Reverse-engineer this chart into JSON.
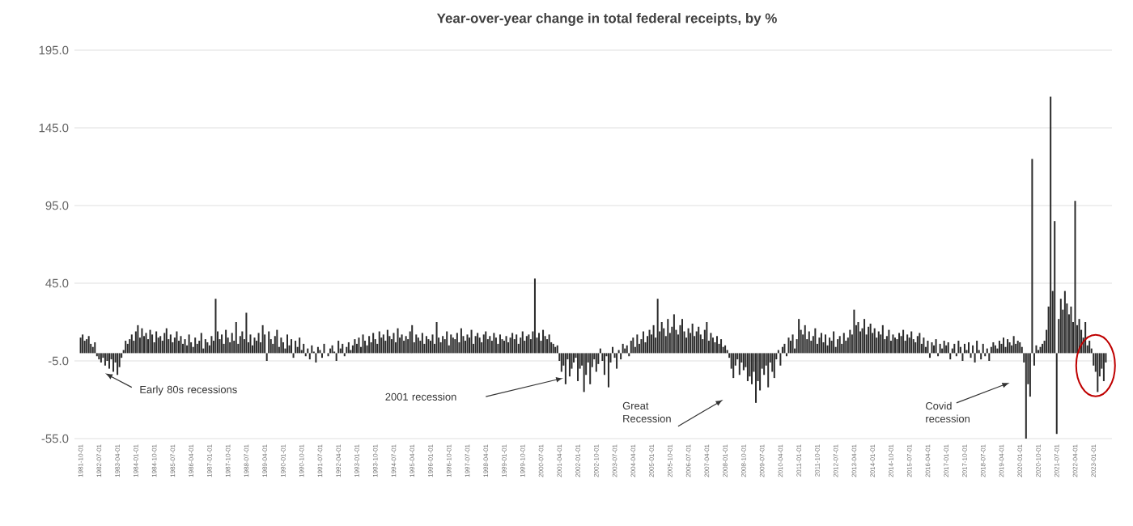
{
  "chart_data": {
    "type": "bar",
    "title": "Year-over-year change in total federal receipts, by %",
    "color": "#2b2b2b",
    "grid": "y",
    "ylim": [
      -55,
      195
    ],
    "yticks": [
      {
        "value": -55,
        "label": "-55.0"
      },
      {
        "value": -5,
        "label": "-5.0"
      },
      {
        "value": 45,
        "label": "45.0"
      },
      {
        "value": 95,
        "label": "95.0"
      },
      {
        "value": 145,
        "label": "145.0"
      },
      {
        "value": 195,
        "label": "195.0"
      }
    ],
    "annotations": [
      "Early 80s recessions",
      "2001 recession",
      "Great Recession",
      "Covid recession"
    ],
    "categories": [
      "1981-10-01",
      null,
      null,
      null,
      null,
      null,
      null,
      null,
      null,
      "1982-07-01",
      null,
      null,
      null,
      null,
      null,
      null,
      null,
      null,
      "1983-04-01",
      null,
      null,
      null,
      null,
      null,
      null,
      null,
      null,
      "1984-01-01",
      null,
      null,
      null,
      null,
      null,
      null,
      null,
      null,
      "1984-10-01",
      null,
      null,
      null,
      null,
      null,
      null,
      null,
      null,
      "1985-07-01",
      null,
      null,
      null,
      null,
      null,
      null,
      null,
      null,
      "1986-04-01",
      null,
      null,
      null,
      null,
      null,
      null,
      null,
      null,
      "1987-01-01",
      null,
      null,
      null,
      null,
      null,
      null,
      null,
      null,
      "1987-10-01",
      null,
      null,
      null,
      null,
      null,
      null,
      null,
      null,
      "1988-07-01",
      null,
      null,
      null,
      null,
      null,
      null,
      null,
      null,
      "1989-04-01",
      null,
      null,
      null,
      null,
      null,
      null,
      null,
      null,
      "1990-01-01",
      null,
      null,
      null,
      null,
      null,
      null,
      null,
      null,
      "1990-10-01",
      null,
      null,
      null,
      null,
      null,
      null,
      null,
      null,
      "1991-07-01",
      null,
      null,
      null,
      null,
      null,
      null,
      null,
      null,
      "1992-04-01",
      null,
      null,
      null,
      null,
      null,
      null,
      null,
      null,
      "1993-01-01",
      null,
      null,
      null,
      null,
      null,
      null,
      null,
      null,
      "1993-10-01",
      null,
      null,
      null,
      null,
      null,
      null,
      null,
      null,
      "1994-07-01",
      null,
      null,
      null,
      null,
      null,
      null,
      null,
      null,
      "1995-04-01",
      null,
      null,
      null,
      null,
      null,
      null,
      null,
      null,
      "1996-01-01",
      null,
      null,
      null,
      null,
      null,
      null,
      null,
      null,
      "1996-10-01",
      null,
      null,
      null,
      null,
      null,
      null,
      null,
      null,
      "1997-07-01",
      null,
      null,
      null,
      null,
      null,
      null,
      null,
      null,
      "1998-04-01",
      null,
      null,
      null,
      null,
      null,
      null,
      null,
      null,
      "1999-01-01",
      null,
      null,
      null,
      null,
      null,
      null,
      null,
      null,
      "1999-10-01",
      null,
      null,
      null,
      null,
      null,
      null,
      null,
      null,
      "2000-07-01",
      null,
      null,
      null,
      null,
      null,
      null,
      null,
      null,
      "2001-04-01",
      null,
      null,
      null,
      null,
      null,
      null,
      null,
      null,
      "2002-01-01",
      null,
      null,
      null,
      null,
      null,
      null,
      null,
      null,
      "2002-10-01",
      null,
      null,
      null,
      null,
      null,
      null,
      null,
      null,
      "2003-07-01",
      null,
      null,
      null,
      null,
      null,
      null,
      null,
      null,
      "2004-04-01",
      null,
      null,
      null,
      null,
      null,
      null,
      null,
      null,
      "2005-01-01",
      null,
      null,
      null,
      null,
      null,
      null,
      null,
      null,
      "2005-10-01",
      null,
      null,
      null,
      null,
      null,
      null,
      null,
      null,
      "2006-07-01",
      null,
      null,
      null,
      null,
      null,
      null,
      null,
      null,
      "2007-04-01",
      null,
      null,
      null,
      null,
      null,
      null,
      null,
      null,
      "2008-01-01",
      null,
      null,
      null,
      null,
      null,
      null,
      null,
      null,
      "2008-10-01",
      null,
      null,
      null,
      null,
      null,
      null,
      null,
      null,
      "2009-07-01",
      null,
      null,
      null,
      null,
      null,
      null,
      null,
      null,
      "2010-04-01",
      null,
      null,
      null,
      null,
      null,
      null,
      null,
      null,
      "2011-01-01",
      null,
      null,
      null,
      null,
      null,
      null,
      null,
      null,
      "2011-10-01",
      null,
      null,
      null,
      null,
      null,
      null,
      null,
      null,
      "2012-07-01",
      null,
      null,
      null,
      null,
      null,
      null,
      null,
      null,
      "2013-04-01",
      null,
      null,
      null,
      null,
      null,
      null,
      null,
      null,
      "2014-01-01",
      null,
      null,
      null,
      null,
      null,
      null,
      null,
      null,
      "2014-10-01",
      null,
      null,
      null,
      null,
      null,
      null,
      null,
      null,
      "2015-07-01",
      null,
      null,
      null,
      null,
      null,
      null,
      null,
      null,
      "2016-04-01",
      null,
      null,
      null,
      null,
      null,
      null,
      null,
      null,
      "2017-01-01",
      null,
      null,
      null,
      null,
      null,
      null,
      null,
      null,
      "2017-10-01",
      null,
      null,
      null,
      null,
      null,
      null,
      null,
      null,
      "2018-07-01",
      null,
      null,
      null,
      null,
      null,
      null,
      null,
      null,
      "2019-04-01",
      null,
      null,
      null,
      null,
      null,
      null,
      null,
      null,
      "2020-01-01",
      null,
      null,
      null,
      null,
      null,
      null,
      null,
      null,
      "2020-10-01",
      null,
      null,
      null,
      null,
      null,
      null,
      null,
      null,
      "2021-07-01",
      null,
      null,
      null,
      null,
      null,
      null,
      null,
      null,
      "2022-04-01",
      null,
      null,
      null,
      null,
      null,
      null,
      null,
      null,
      "2023-01-01",
      null,
      null,
      null,
      null,
      null,
      null
    ],
    "values": [
      10,
      12,
      8,
      9,
      11,
      6,
      4,
      7,
      -2,
      -4,
      -6,
      -3,
      -8,
      -5,
      -10,
      -4,
      -12,
      -6,
      -14,
      -9,
      -3,
      2,
      8,
      6,
      9,
      12,
      8,
      14,
      18,
      10,
      16,
      11,
      13,
      9,
      15,
      12,
      7,
      14,
      10,
      11,
      8,
      13,
      16,
      9,
      12,
      7,
      10,
      14,
      8,
      11,
      6,
      9,
      5,
      12,
      7,
      4,
      10,
      6,
      8,
      13,
      3,
      9,
      7,
      5,
      11,
      8,
      35,
      14,
      9,
      12,
      6,
      15,
      10,
      7,
      13,
      8,
      20,
      6,
      11,
      14,
      9,
      26,
      7,
      12,
      5,
      10,
      8,
      13,
      7,
      18,
      12,
      -5,
      14,
      9,
      6,
      11,
      15,
      4,
      10,
      7,
      3,
      12,
      5,
      9,
      -3,
      8,
      4,
      10,
      2,
      6,
      -2,
      3,
      -4,
      5,
      1,
      -6,
      4,
      2,
      -3,
      6,
      0,
      -2,
      3,
      5,
      1,
      -5,
      8,
      3,
      6,
      -2,
      4,
      7,
      2,
      5,
      9,
      6,
      10,
      4,
      12,
      8,
      5,
      11,
      7,
      13,
      9,
      6,
      14,
      10,
      12,
      8,
      15,
      11,
      9,
      13,
      7,
      16,
      10,
      12,
      8,
      11,
      9,
      14,
      18,
      7,
      12,
      10,
      8,
      13,
      6,
      11,
      9,
      8,
      12,
      6,
      20,
      10,
      7,
      11,
      9,
      14,
      5,
      12,
      10,
      9,
      13,
      7,
      16,
      11,
      8,
      12,
      10,
      15,
      6,
      11,
      13,
      10,
      7,
      12,
      14,
      9,
      11,
      8,
      13,
      10,
      6,
      12,
      9,
      8,
      11,
      7,
      10,
      13,
      9,
      12,
      6,
      10,
      14,
      8,
      11,
      12,
      9,
      14,
      48,
      10,
      13,
      8,
      15,
      11,
      9,
      12,
      7,
      6,
      4,
      5,
      -5,
      -12,
      -8,
      -20,
      -4,
      -15,
      -10,
      -6,
      -3,
      -18,
      -10,
      -8,
      -25,
      -14,
      -6,
      -20,
      -9,
      -4,
      -12,
      -7,
      3,
      -5,
      -14,
      -2,
      -22,
      -6,
      4,
      -3,
      -10,
      2,
      -4,
      6,
      3,
      5,
      -2,
      8,
      10,
      4,
      12,
      6,
      9,
      14,
      7,
      11,
      15,
      12,
      18,
      10,
      35,
      14,
      20,
      16,
      11,
      22,
      13,
      17,
      25,
      15,
      12,
      18,
      22,
      14,
      10,
      16,
      13,
      19,
      11,
      14,
      17,
      12,
      9,
      15,
      20,
      8,
      13,
      10,
      7,
      11,
      6,
      9,
      4,
      5,
      2,
      -3,
      -10,
      -16,
      -8,
      -4,
      -14,
      -6,
      -11,
      -9,
      -18,
      -15,
      -20,
      -12,
      -32,
      -18,
      -24,
      -10,
      -14,
      -8,
      -22,
      -6,
      -12,
      -16,
      -4,
      2,
      -8,
      4,
      6,
      -2,
      10,
      8,
      12,
      3,
      9,
      22,
      15,
      12,
      18,
      9,
      14,
      8,
      11,
      16,
      6,
      10,
      13,
      7,
      12,
      5,
      10,
      8,
      14,
      4,
      9,
      11,
      6,
      13,
      8,
      10,
      15,
      12,
      28,
      18,
      20,
      14,
      16,
      22,
      12,
      17,
      19,
      13,
      16,
      10,
      14,
      12,
      18,
      9,
      11,
      15,
      8,
      12,
      10,
      9,
      13,
      11,
      15,
      8,
      12,
      10,
      14,
      9,
      7,
      11,
      13,
      6,
      10,
      4,
      8,
      -3,
      7,
      5,
      9,
      -2,
      6,
      3,
      8,
      5,
      7,
      -4,
      3,
      6,
      -2,
      8,
      4,
      -5,
      6,
      2,
      7,
      -3,
      5,
      -6,
      8,
      2,
      -4,
      6,
      -2,
      3,
      -5,
      4,
      7,
      5,
      3,
      8,
      6,
      10,
      4,
      9,
      7,
      5,
      11,
      6,
      8,
      7,
      4,
      -6,
      -55,
      -20,
      -28,
      125,
      -8,
      5,
      2,
      4,
      6,
      8,
      15,
      30,
      165,
      40,
      85,
      -52,
      22,
      35,
      28,
      40,
      32,
      25,
      30,
      20,
      98,
      18,
      22,
      15,
      10,
      20,
      5,
      8,
      3,
      -8,
      -12,
      -25,
      -15,
      -10,
      -18,
      -6
    ]
  }
}
